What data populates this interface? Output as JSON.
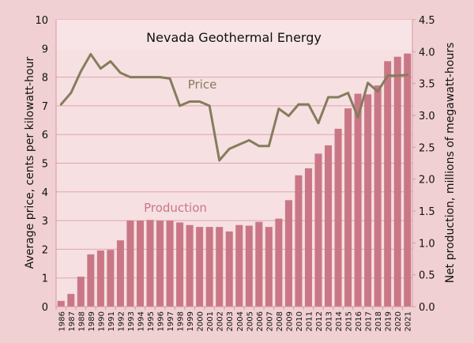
{
  "chart_data": {
    "type": "bar+line",
    "title": "Nevada Geothermal Energy",
    "ylabel_left": "Average price, cents per kilowatt-hour",
    "ylabel_right": "Net production, millions of megawatt-hours",
    "ylim_left": [
      0,
      10
    ],
    "ylim_right": [
      0,
      4.5
    ],
    "yticks_left": [
      "0",
      "1",
      "2",
      "3",
      "4",
      "5",
      "6",
      "7",
      "8",
      "9",
      "10"
    ],
    "yticks_right": [
      "0.0",
      "0.5",
      "1.0",
      "1.5",
      "2.0",
      "2.5",
      "3.0",
      "3.5",
      "4.0",
      "4.5"
    ],
    "grid": true,
    "categories": [
      "1986",
      "1987",
      "1988",
      "1989",
      "1990",
      "1991",
      "1992",
      "1993",
      "1994",
      "1995",
      "1996",
      "1997",
      "1998",
      "1999",
      "2000",
      "2001",
      "2002",
      "2003",
      "2004",
      "2005",
      "2006",
      "2007",
      "2008",
      "2009",
      "2010",
      "2011",
      "2012",
      "2013",
      "2014",
      "2015",
      "2016",
      "2017",
      "2018",
      "2019",
      "2020",
      "2021"
    ],
    "series": [
      {
        "name": "Production",
        "type": "bar",
        "axis": "right",
        "color": "#c97786",
        "values": [
          0.09,
          0.2,
          0.47,
          0.82,
          0.88,
          0.89,
          1.04,
          1.35,
          1.35,
          1.36,
          1.35,
          1.35,
          1.32,
          1.28,
          1.25,
          1.25,
          1.25,
          1.18,
          1.28,
          1.27,
          1.33,
          1.25,
          1.38,
          1.67,
          2.06,
          2.17,
          2.4,
          2.53,
          2.79,
          3.11,
          3.34,
          3.33,
          3.47,
          3.85,
          3.92,
          3.97
        ]
      },
      {
        "name": "Price",
        "type": "line",
        "axis": "left",
        "color": "#857c5c",
        "values": [
          7.05,
          7.45,
          8.2,
          8.8,
          8.3,
          8.55,
          8.15,
          8.0,
          8.0,
          8.0,
          8.0,
          7.95,
          7.0,
          7.15,
          7.15,
          7.0,
          5.1,
          5.5,
          5.65,
          5.8,
          5.6,
          5.6,
          6.9,
          6.65,
          7.05,
          7.05,
          6.4,
          7.3,
          7.3,
          7.45,
          6.6,
          7.8,
          7.5,
          8.05,
          8.05,
          8.08
        ]
      }
    ]
  }
}
